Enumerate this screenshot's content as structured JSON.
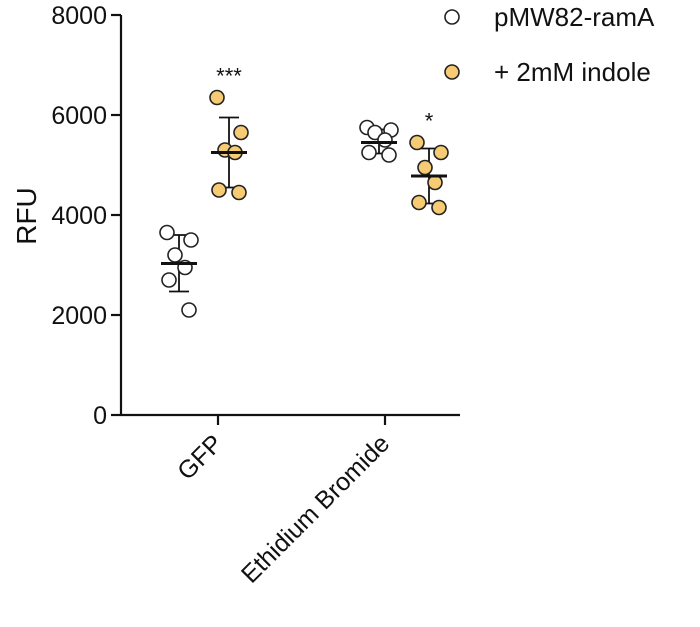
{
  "chart_data": {
    "type": "scatter",
    "ylabel": "RFU",
    "xlabel": "",
    "ylim": [
      0,
      8000
    ],
    "yticks": [
      0,
      2000,
      4000,
      6000,
      8000
    ],
    "categories": [
      "GFP",
      "Ethidium Bromide"
    ],
    "grid": false,
    "legend_position": "top-right",
    "series": [
      {
        "name": "pMW82-ramA",
        "color": "#ffffff",
        "groups": [
          {
            "category": "GFP",
            "points": [
              3650,
              3500,
              3200,
              2950,
              2700,
              2100
            ],
            "mean": 3030,
            "sd_low": 2470,
            "sd_high": 3600
          },
          {
            "category": "Ethidium Bromide",
            "points": [
              5750,
              5700,
              5650,
              5500,
              5250,
              5200
            ],
            "mean": 5450,
            "sd_low": 5230,
            "sd_high": 5710
          }
        ],
        "significance": [
          "",
          ""
        ]
      },
      {
        "name": "+ 2mM indole",
        "color": "#F6CB73",
        "groups": [
          {
            "category": "GFP",
            "points": [
              6350,
              5650,
              5300,
              5250,
              4500,
              4450
            ],
            "mean": 5250,
            "sd_low": 4550,
            "sd_high": 5950
          },
          {
            "category": "Ethidium Bromide",
            "points": [
              5450,
              5250,
              4950,
              4650,
              4250,
              4150
            ],
            "mean": 4780,
            "sd_low": 4230,
            "sd_high": 5330
          }
        ],
        "significance": [
          "***",
          "*"
        ]
      }
    ]
  }
}
